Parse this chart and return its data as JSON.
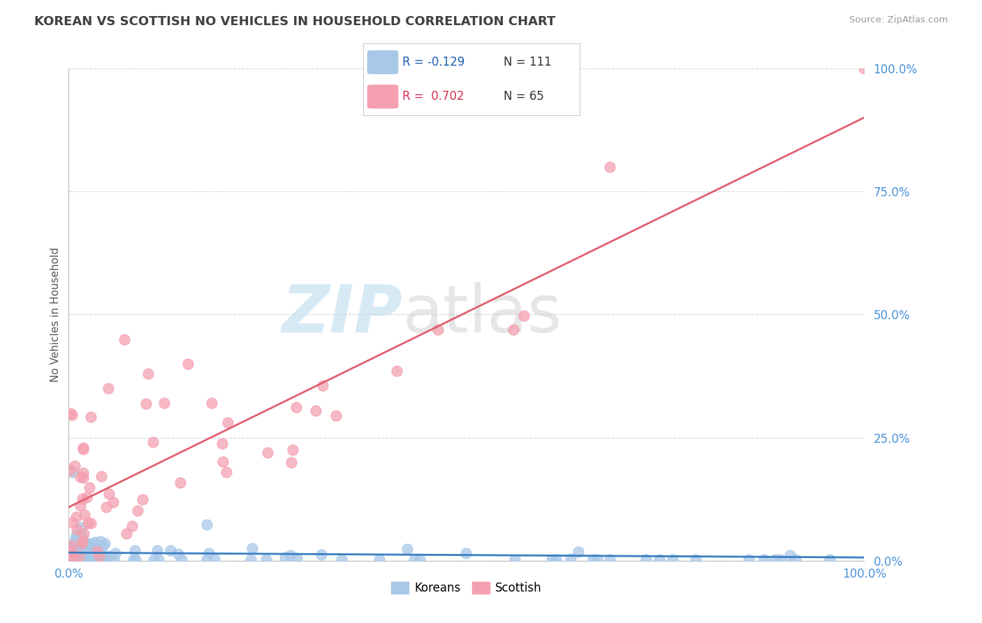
{
  "title": "KOREAN VS SCOTTISH NO VEHICLES IN HOUSEHOLD CORRELATION CHART",
  "source": "Source: ZipAtlas.com",
  "ylabel": "No Vehicles in Household",
  "ytick_values": [
    0,
    25,
    50,
    75,
    100
  ],
  "xlim": [
    0,
    100
  ],
  "ylim": [
    0,
    100
  ],
  "korean_R": -0.129,
  "korean_N": 111,
  "scottish_R": 0.702,
  "scottish_N": 65,
  "korean_color": "#a8c8e8",
  "scottish_color": "#f4a0b0",
  "korean_line_color": "#3a7fc1",
  "scottish_line_color": "#e06070",
  "background_color": "#ffffff",
  "grid_color": "#cccccc",
  "title_color": "#404040",
  "axis_label_color": "#4a90d9",
  "legend_R_color_korean": "#1a5fb0",
  "legend_R_color_scottish": "#d03050",
  "watermark_ZIP_color": "#b8d8f0",
  "watermark_atlas_color": "#c8c8c8"
}
